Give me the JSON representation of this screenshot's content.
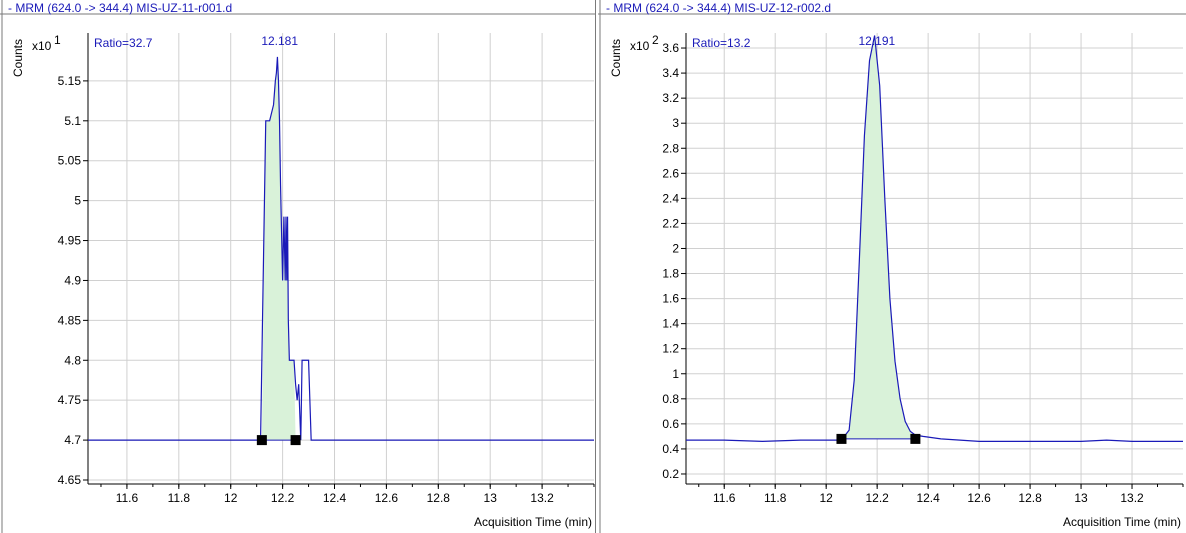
{
  "colors": {
    "trace": "#1a1ab8",
    "fill": "#d9f2d9",
    "grid": "#d0d0d0",
    "marker": "#000000"
  },
  "chart_data": [
    {
      "type": "line",
      "title": "- MRM (624.0 -> 344.4) MIS-UZ-11-r001.d",
      "ylabel": "Counts",
      "xlabel": "Acquisition Time (min)",
      "y_multiplier": "x10",
      "y_exponent": "1",
      "ratio": "Ratio=32.7",
      "peak_label": "12.181",
      "peak_rt": 12.181,
      "xlim": [
        11.45,
        13.4
      ],
      "ylim": [
        4.645,
        5.21
      ],
      "x_ticks": [
        11.6,
        11.8,
        12,
        12.2,
        12.4,
        12.6,
        12.8,
        13,
        13.2
      ],
      "x_tick_labels": [
        "11.6",
        "11.8",
        "12",
        "12.2",
        "12.4",
        "12.6",
        "12.8",
        "13",
        "13.2"
      ],
      "y_ticks": [
        4.65,
        4.7,
        4.75,
        4.8,
        4.85,
        4.9,
        4.95,
        5,
        5.05,
        5.1,
        5.15
      ],
      "y_tick_labels": [
        "4.65",
        "4.7",
        "4.75",
        "4.8",
        "4.85",
        "4.9",
        "4.95",
        "5",
        "5.05",
        "5.1",
        "5.15"
      ],
      "integration_start": [
        12.12,
        4.7
      ],
      "integration_end": [
        12.25,
        4.7
      ],
      "x": [
        11.45,
        12.115,
        12.12,
        12.135,
        12.15,
        12.165,
        12.172,
        12.176,
        12.18,
        12.184,
        12.188,
        12.192,
        12.196,
        12.2,
        12.205,
        12.21,
        12.213,
        12.216,
        12.219,
        12.222,
        12.226,
        12.232,
        12.238,
        12.244,
        12.25,
        12.256,
        12.262,
        12.27,
        12.275,
        12.28,
        12.3,
        12.305,
        12.31,
        13.4
      ],
      "y": [
        4.7,
        4.7,
        4.8,
        5.1,
        5.1,
        5.12,
        5.15,
        5.16,
        5.18,
        5.15,
        5.1,
        5.02,
        4.96,
        4.9,
        4.98,
        4.9,
        4.98,
        4.9,
        4.98,
        4.85,
        4.8,
        4.8,
        4.8,
        4.8,
        4.77,
        4.75,
        4.77,
        4.7,
        4.8,
        4.8,
        4.8,
        4.75,
        4.7,
        4.7
      ]
    },
    {
      "type": "line",
      "title": "- MRM (624.0 -> 344.4) MIS-UZ-12-r002.d",
      "ylabel": "Counts",
      "xlabel": "Acquisition Time (min)",
      "y_multiplier": "x10",
      "y_exponent": "2",
      "ratio": "Ratio=13.2",
      "peak_label": "12.191",
      "peak_rt": 12.191,
      "xlim": [
        11.45,
        13.4
      ],
      "ylim": [
        0.12,
        3.72
      ],
      "x_ticks": [
        11.6,
        11.8,
        12,
        12.2,
        12.4,
        12.6,
        12.8,
        13,
        13.2
      ],
      "x_tick_labels": [
        "11.6",
        "11.8",
        "12",
        "12.2",
        "12.4",
        "12.6",
        "12.8",
        "13",
        "13.2"
      ],
      "y_ticks": [
        0.2,
        0.4,
        0.6,
        0.8,
        1,
        1.2,
        1.4,
        1.6,
        1.8,
        2,
        2.2,
        2.4,
        2.6,
        2.8,
        3,
        3.2,
        3.4,
        3.6
      ],
      "y_tick_labels": [
        "0.2",
        "0.4",
        "0.6",
        "0.8",
        "1",
        "1.2",
        "1.4",
        "1.6",
        "1.8",
        "2",
        "2.2",
        "2.4",
        "2.6",
        "2.8",
        "3",
        "3.2",
        "3.4",
        "3.6"
      ],
      "integration_start": [
        12.06,
        0.48
      ],
      "integration_end": [
        12.35,
        0.48
      ],
      "x": [
        11.45,
        11.6,
        11.75,
        11.9,
        12.0,
        12.06,
        12.09,
        12.11,
        12.13,
        12.15,
        12.17,
        12.19,
        12.21,
        12.23,
        12.25,
        12.27,
        12.29,
        12.31,
        12.33,
        12.35,
        12.38,
        12.45,
        12.6,
        12.8,
        13.0,
        13.1,
        13.2,
        13.4
      ],
      "y": [
        0.47,
        0.47,
        0.46,
        0.47,
        0.47,
        0.47,
        0.55,
        0.95,
        1.9,
        2.9,
        3.5,
        3.7,
        3.3,
        2.4,
        1.6,
        1.1,
        0.8,
        0.62,
        0.54,
        0.51,
        0.5,
        0.48,
        0.46,
        0.46,
        0.46,
        0.47,
        0.46,
        0.46
      ]
    }
  ]
}
